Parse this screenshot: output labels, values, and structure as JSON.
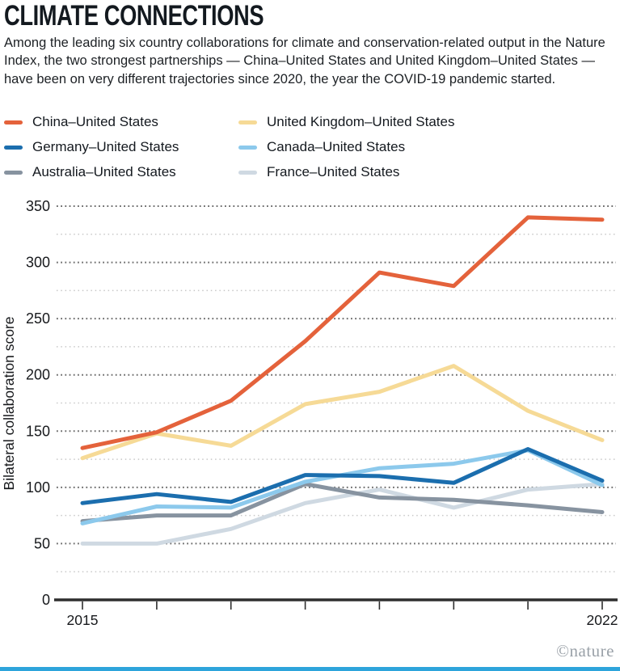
{
  "header": {
    "title": "CLIMATE CONNECTIONS",
    "subtitle": "Among the leading six country collaborations for climate and conservation-related output in the Nature Index, the two strongest partnerships — China–United States and United Kingdom–United States — have been on very different trajectories since 2020, the year the COVID-19 pandemic started."
  },
  "chart_data": {
    "type": "line",
    "x": [
      2015,
      2016,
      2017,
      2018,
      2019,
      2020,
      2021,
      2022
    ],
    "x_tick_labels": [
      "2015",
      "",
      "",
      "",
      "",
      "",
      "",
      "2022"
    ],
    "ylabel": "Bilateral collaboration score",
    "ylim": [
      0,
      350
    ],
    "yticks": [
      0,
      50,
      100,
      150,
      200,
      250,
      300,
      350
    ],
    "grid": "horizontal dotted lines every 25, darker at labeled 50s",
    "legend_position": "top-left, two columns",
    "series": [
      {
        "name": "China–United States",
        "color": "#e4623b",
        "values": [
          135,
          149,
          177,
          230,
          291,
          279,
          340,
          338
        ]
      },
      {
        "name": "United Kingdom–United States",
        "color": "#f6da96",
        "values": [
          126,
          148,
          137,
          174,
          185,
          208,
          168,
          142
        ]
      },
      {
        "name": "Germany–United States",
        "color": "#1b6eae",
        "values": [
          86,
          94,
          87,
          111,
          110,
          104,
          134,
          106
        ]
      },
      {
        "name": "Canada–United States",
        "color": "#8cc9ec",
        "values": [
          68,
          83,
          82,
          105,
          117,
          121,
          133,
          102
        ]
      },
      {
        "name": "Australia–United States",
        "color": "#8793a0",
        "values": [
          70,
          75,
          75,
          103,
          91,
          89,
          84,
          78
        ]
      },
      {
        "name": "France–United States",
        "color": "#cfd9e2",
        "values": [
          50,
          50,
          63,
          86,
          98,
          82,
          98,
          103
        ]
      }
    ]
  },
  "footer": {
    "credit": "©nature",
    "bar_color": "#2da4db"
  }
}
